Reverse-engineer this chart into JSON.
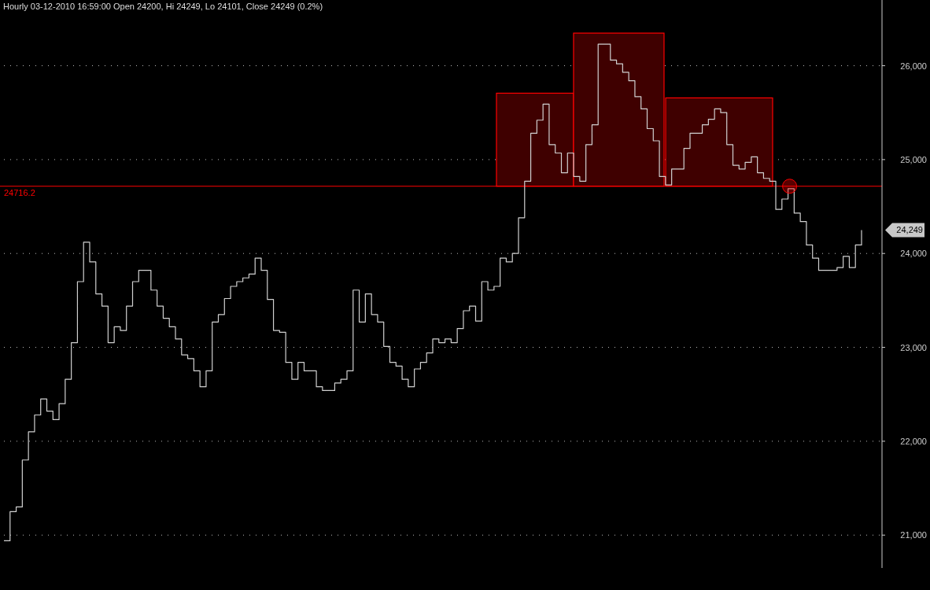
{
  "chart_data": {
    "type": "step",
    "title": "Hourly 03-12-2010 16:59:00 Open 24200, Hi 24249, Lo 24101, Close 24249 (0.2%)",
    "categories": [
      null,
      null,
      null,
      null,
      null,
      null,
      null,
      null,
      null,
      null,
      null,
      null,
      null,
      null,
      null,
      null,
      null,
      null,
      null,
      null,
      null,
      null,
      null,
      null,
      null,
      null,
      null,
      null,
      null,
      null,
      null,
      null,
      null,
      null,
      null,
      null,
      null,
      null,
      null,
      null,
      null,
      null,
      null,
      null,
      null,
      null,
      null,
      null,
      null,
      null,
      null,
      null,
      null,
      null,
      null,
      null,
      null,
      null,
      null,
      null,
      null,
      null,
      null,
      null,
      null,
      null,
      null,
      null,
      null,
      null,
      null,
      null,
      null,
      null,
      null,
      null,
      null,
      null,
      null,
      null,
      null,
      null,
      null,
      null,
      null,
      null,
      null,
      null,
      null,
      null,
      null,
      null,
      null,
      null,
      null,
      null,
      null,
      null,
      null,
      null,
      null,
      null,
      null,
      null,
      null,
      null,
      null,
      null,
      null,
      null,
      null,
      null,
      null,
      null,
      null,
      null,
      null,
      null,
      null,
      null,
      null,
      null,
      null,
      null,
      null,
      null,
      null,
      null,
      null,
      null,
      null,
      null,
      null,
      null,
      null,
      null,
      null,
      null,
      null,
      null,
      null
    ],
    "series": [
      {
        "color": "#d0d0d0",
        "values": [
          20940,
          21250,
          21300,
          21800,
          22100,
          22280,
          22450,
          22320,
          22230,
          22400,
          22660,
          23050,
          23700,
          24120,
          23910,
          23570,
          23440,
          23050,
          23220,
          23180,
          23440,
          23700,
          23820,
          23820,
          23610,
          23440,
          23310,
          23220,
          23090,
          22920,
          22880,
          22750,
          22580,
          22750,
          23270,
          23350,
          23520,
          23650,
          23700,
          23740,
          23780,
          23950,
          23820,
          23510,
          23180,
          23160,
          22840,
          22660,
          22840,
          22750,
          22750,
          22580,
          22540,
          22540,
          22620,
          22660,
          22750,
          23610,
          23270,
          23570,
          23350,
          23270,
          23010,
          22840,
          22800,
          22660,
          22580,
          22770,
          22840,
          22940,
          23090,
          23050,
          23090,
          23050,
          23200,
          23390,
          23440,
          23280,
          23700,
          23610,
          23650,
          23950,
          23910,
          24000,
          24380,
          24770,
          25280,
          25420,
          25590,
          25160,
          25070,
          24860,
          25070,
          24820,
          24770,
          25160,
          25370,
          26230,
          26230,
          26060,
          26020,
          25930,
          25840,
          25670,
          25540,
          25330,
          25200,
          24820,
          24730,
          24900,
          24900,
          25120,
          25280,
          25280,
          25370,
          25430,
          25540,
          25500,
          25160,
          24940,
          24900,
          24970,
          25030,
          24860,
          24800,
          24770,
          24470,
          24580,
          24690,
          24430,
          24340,
          24090,
          23950,
          23820,
          23820,
          23820,
          23850,
          23970,
          23850,
          24090,
          24249
        ]
      }
    ],
    "ylim": [
      20650,
      26700
    ],
    "yticks": [
      {
        "value": 21000,
        "label": "21,000"
      },
      {
        "value": 22000,
        "label": "22,000"
      },
      {
        "value": 23000,
        "label": "23,000"
      },
      {
        "value": 24000,
        "label": "24,000"
      },
      {
        "value": 25000,
        "label": "25,000"
      },
      {
        "value": 26000,
        "label": "26,000"
      }
    ],
    "grid": "y",
    "ref_lines": [
      {
        "axis": "y",
        "value": 24716.2,
        "label": "24716.2",
        "color": "#ff0000"
      }
    ],
    "annotations": [
      "24,249"
    ]
  }
}
